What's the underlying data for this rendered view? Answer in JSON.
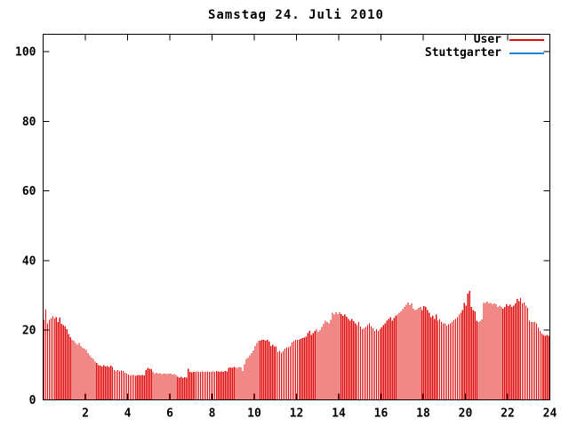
{
  "title": "Samstag 24. Juli 2010",
  "colors": {
    "background": "#ffffff",
    "axis": "#000000",
    "text": "#000000",
    "user_red": "#e01010",
    "stuttgarter_blue": "#1e86d9"
  },
  "chart_data": {
    "type": "bar",
    "title": "Samstag 24. Juli 2010",
    "xlabel": "",
    "ylabel": "",
    "xlim": [
      0,
      24
    ],
    "ylim": [
      0,
      105
    ],
    "x_ticks": [
      2,
      4,
      6,
      8,
      10,
      12,
      14,
      16,
      18,
      20,
      22,
      24
    ],
    "y_ticks": [
      0,
      20,
      40,
      60,
      80,
      100
    ],
    "grid": false,
    "legend_position": "top-right-inside",
    "bar_style": "impulses",
    "x_start": 0.0417,
    "x_step": 0.0833,
    "series": [
      {
        "name": "User",
        "color": "#e01010",
        "values": [
          23.0,
          26.0,
          22.0,
          23.0,
          23.5,
          24.0,
          23.4,
          23.8,
          22.4,
          23.6,
          21.9,
          21.5,
          21.1,
          20.3,
          18.9,
          18.0,
          17.3,
          17.0,
          16.4,
          15.8,
          16.4,
          15.5,
          14.9,
          14.7,
          14.3,
          13.4,
          12.8,
          12.1,
          11.7,
          11.0,
          10.6,
          10.0,
          9.8,
          9.6,
          9.9,
          9.6,
          9.7,
          9.5,
          9.8,
          9.4,
          8.5,
          8.3,
          8.5,
          8.2,
          8.4,
          8.3,
          7.8,
          7.5,
          7.3,
          7.0,
          7.2,
          7.1,
          6.9,
          7.0,
          7.2,
          7.0,
          7.1,
          7.0,
          8.5,
          9.2,
          9.0,
          8.8,
          8.0,
          7.6,
          7.8,
          7.5,
          7.7,
          7.4,
          7.6,
          7.5,
          7.4,
          7.6,
          7.5,
          7.3,
          7.4,
          7.2,
          6.6,
          6.4,
          6.6,
          6.3,
          6.5,
          6.4,
          8.9,
          8.0,
          7.9,
          8.1,
          8.0,
          8.2,
          8.0,
          8.1,
          8.2,
          8.0,
          8.1,
          8.2,
          8.1,
          8.0,
          8.2,
          8.1,
          8.3,
          8.2,
          8.0,
          8.2,
          8.1,
          8.3,
          8.2,
          9.2,
          9.3,
          9.2,
          9.4,
          9.3,
          9.2,
          9.4,
          9.3,
          8.3,
          10.2,
          11.7,
          12.1,
          12.8,
          13.4,
          14.2,
          15.5,
          16.4,
          17.0,
          17.0,
          17.3,
          17.3,
          17.0,
          17.3,
          16.7,
          15.5,
          15.9,
          15.3,
          15.3,
          13.8,
          14.1,
          13.6,
          14.1,
          14.7,
          15.1,
          15.1,
          15.5,
          16.5,
          16.8,
          17.2,
          17.3,
          17.3,
          17.5,
          17.7,
          17.9,
          18.2,
          19.2,
          19.8,
          18.7,
          19.2,
          19.8,
          20.3,
          19.5,
          20.0,
          21.0,
          21.8,
          22.8,
          22.4,
          22.0,
          23.0,
          25.0,
          24.5,
          25.2,
          24.7,
          25.2,
          24.6,
          24.1,
          24.5,
          23.9,
          23.3,
          22.8,
          23.3,
          22.6,
          22.0,
          21.5,
          22.4,
          21.1,
          20.3,
          20.6,
          21.0,
          21.5,
          22.0,
          21.1,
          20.6,
          19.8,
          20.3,
          19.8,
          20.3,
          20.8,
          21.5,
          22.0,
          22.8,
          23.3,
          23.7,
          22.8,
          23.5,
          24.1,
          24.5,
          25.0,
          25.4,
          26.0,
          26.7,
          27.3,
          28.0,
          27.2,
          27.7,
          26.2,
          25.8,
          26.0,
          26.4,
          26.7,
          25.8,
          27.0,
          26.7,
          25.8,
          25.0,
          23.7,
          24.1,
          23.3,
          24.5,
          22.8,
          23.1,
          22.4,
          22.0,
          22.0,
          21.3,
          21.7,
          22.0,
          22.4,
          23.0,
          23.3,
          23.7,
          24.5,
          25.0,
          25.8,
          27.9,
          27.1,
          30.5,
          31.3,
          26.7,
          25.8,
          25.4,
          22.8,
          22.4,
          22.6,
          23.1,
          27.8,
          27.9,
          28.2,
          27.7,
          27.9,
          27.5,
          27.7,
          27.4,
          26.7,
          27.1,
          26.7,
          26.2,
          26.7,
          27.5,
          26.9,
          27.3,
          26.7,
          27.1,
          27.7,
          29.0,
          28.4,
          29.3,
          27.7,
          28.0,
          27.1,
          26.5,
          22.8,
          22.4,
          22.4,
          22.4,
          22.0,
          20.7,
          19.8,
          19.0,
          18.6,
          18.4,
          18.6,
          18.4
        ]
      },
      {
        "name": "Stuttgarter",
        "color": "#1e86d9",
        "values": []
      }
    ]
  }
}
